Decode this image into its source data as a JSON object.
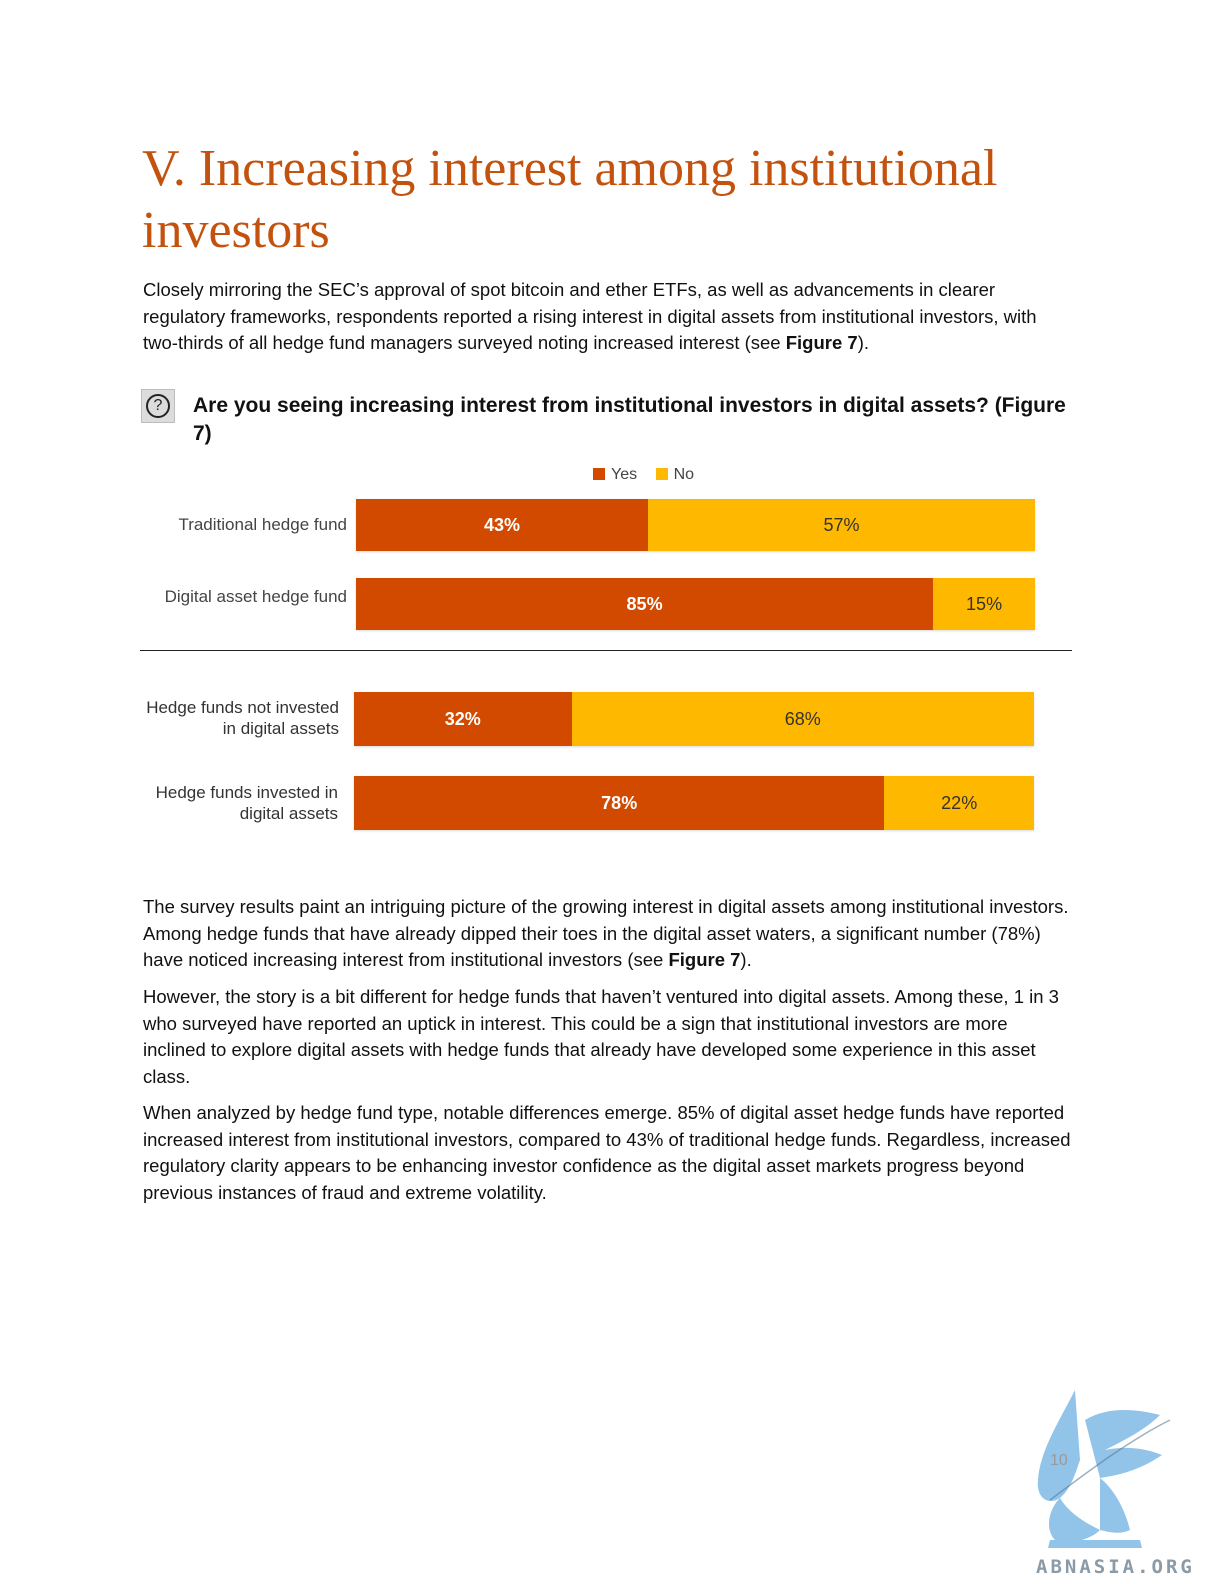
{
  "title": "V. Increasing interest among institutional investors",
  "intro": {
    "before": "Closely mirroring the SEC’s approval of spot bitcoin and ether ETFs, as well as advancements in clearer regulatory frameworks, respondents reported a rising interest in digital assets from institutional investors, with two-thirds of all hedge fund managers surveyed noting increased interest (see ",
    "ref": "Figure 7",
    "after": ")."
  },
  "question": {
    "icon": "question-icon",
    "icon_glyph": "?",
    "text": "Are you seeing increasing interest from institutional investors in digital assets? (Figure 7)"
  },
  "chart_data": {
    "type": "bar",
    "orientation": "horizontal",
    "stacked": true,
    "legend": [
      {
        "label": "Yes",
        "color": "#d24a00"
      },
      {
        "label": "No",
        "color": "#ffb800"
      }
    ],
    "legend_placement": "top-center",
    "groups": [
      {
        "categories": [
          {
            "label": "Traditional hedge fund",
            "yes": 43,
            "no": 57,
            "yes_label": "43%",
            "no_label": "57%"
          },
          {
            "label": "Digital asset hedge fund",
            "yes": 85,
            "no": 15,
            "yes_label": "85%",
            "no_label": "15%"
          }
        ]
      },
      {
        "categories": [
          {
            "label": "Hedge funds not invested in digital assets",
            "yes": 32,
            "no": 68,
            "yes_label": "32%",
            "no_label": "68%"
          },
          {
            "label": "Hedge funds invested in digital assets",
            "yes": 78,
            "no": 22,
            "yes_label": "78%",
            "no_label": "22%"
          }
        ]
      }
    ]
  },
  "body": [
    {
      "before": "The survey results paint an intriguing picture of the growing interest in digital assets among institutional investors. Among hedge funds that have already dipped their toes in the digital asset waters, a significant number (78%) have noticed increasing interest from institutional investors (see ",
      "ref": "Figure 7",
      "after": ")."
    },
    {
      "before": "However, the story is a bit different for hedge funds that haven’t ventured into digital assets. Among these, 1 in 3 who surveyed have reported an uptick in interest. This could be a sign that institutional investors are more inclined to explore digital assets with hedge funds that already have developed some experience in this asset class.",
      "ref": "",
      "after": ""
    },
    {
      "before": "When analyzed by hedge fund type, notable differences emerge. 85% of digital asset hedge funds have reported increased interest from institutional investors, compared to 43% of traditional hedge funds. Regardless, increased regulatory clarity appears to be enhancing investor confidence as the digital asset markets progress beyond previous instances of fraud and extreme volatility.",
      "ref": "",
      "after": ""
    }
  ],
  "footer": {
    "page_number": "10",
    "watermark_text": "ABNASIA.ORG",
    "watermark_icon": "griffin-logo-icon"
  }
}
